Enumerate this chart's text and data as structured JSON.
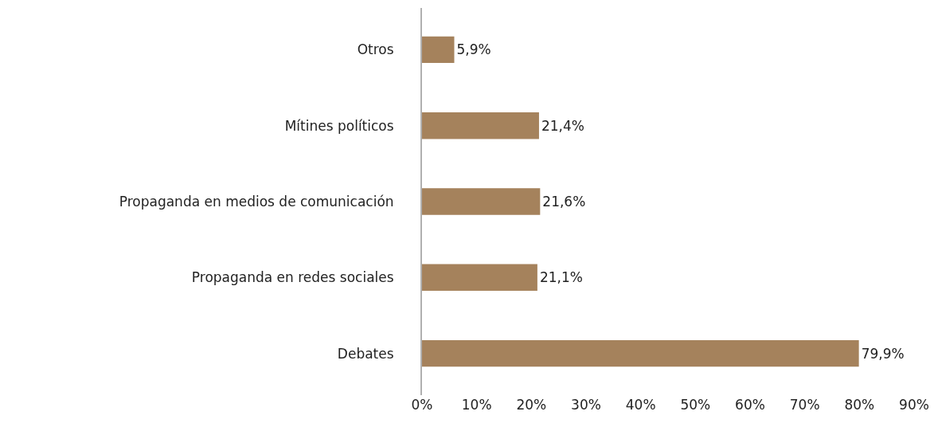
{
  "chart_data": {
    "type": "bar",
    "orientation": "horizontal",
    "categories": [
      "Otros",
      "Mítines políticos",
      "Propaganda en medios de comunicación",
      "Propaganda en redes sociales",
      "Debates"
    ],
    "values": [
      5.9,
      21.4,
      21.6,
      21.1,
      79.9
    ],
    "value_labels": [
      "5,9%",
      "21,4%",
      "21,6%",
      "21,1%",
      "79,9%"
    ],
    "color": "#a5825c",
    "xlim": [
      0,
      90
    ],
    "xticks": [
      {
        "value": 0,
        "label": "0%"
      },
      {
        "value": 10,
        "label": "10%"
      },
      {
        "value": 20,
        "label": "20%"
      },
      {
        "value": 30,
        "label": "30%"
      },
      {
        "value": 40,
        "label": "40%"
      },
      {
        "value": 50,
        "label": "50%"
      },
      {
        "value": 60,
        "label": "60%"
      },
      {
        "value": 70,
        "label": "70%"
      },
      {
        "value": 80,
        "label": "80%"
      },
      {
        "value": 90,
        "label": "90%"
      }
    ],
    "grid": false,
    "legend": false
  }
}
